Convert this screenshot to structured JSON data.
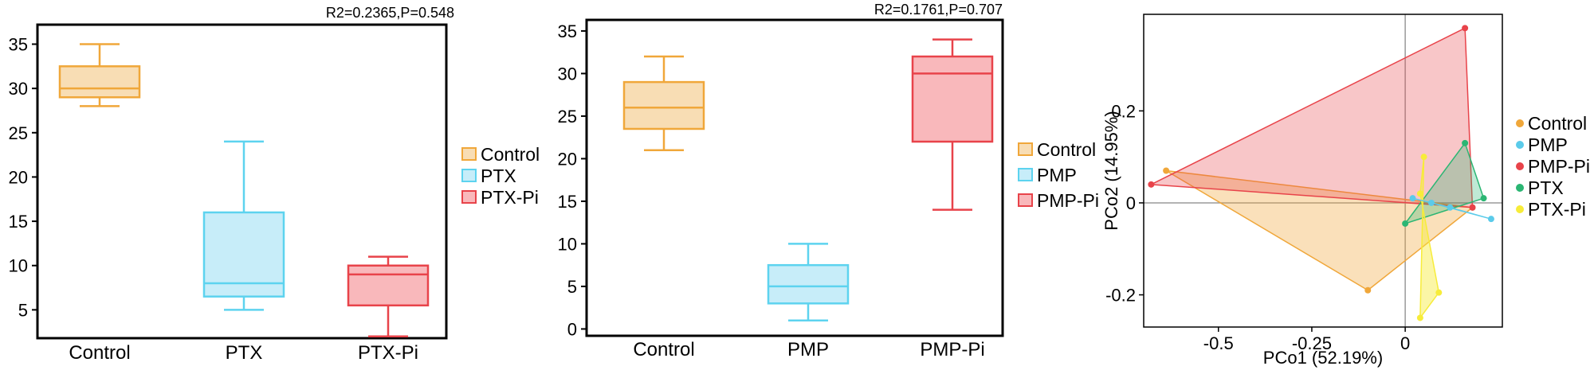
{
  "colors": {
    "Control": {
      "stroke": "#f0a73a",
      "fill": "#f8ddb4"
    },
    "PTX": {
      "stroke": "#5dd3ef",
      "fill": "#c7edf9"
    },
    "PMP": {
      "stroke": "#5dd3ef",
      "fill": "#c7edf9"
    },
    "PTX-Pi": {
      "stroke": "#e8434a",
      "fill": "#f9b8bb"
    },
    "PMP-Pi": {
      "stroke": "#e8434a",
      "fill": "#f9b8bb"
    },
    "PCoA_Control": "#f0a73a",
    "PCoA_PMP": "#5bcbea",
    "PCoA_PMP-Pi": "#e8434a",
    "PCoA_PTX": "#2bb673",
    "PCoA_PTX-Pi": "#f7ec39"
  },
  "chart_data": [
    {
      "type": "box",
      "annotation": "R2=0.2365,P=0.548",
      "categories": [
        "Control",
        "PTX",
        "PTX-Pi"
      ],
      "yticks": [
        5,
        10,
        15,
        20,
        25,
        30,
        35
      ],
      "ylim": [
        1.8,
        37.2
      ],
      "boxes": [
        {
          "name": "Control",
          "min": 28,
          "q1": 29,
          "median": 30,
          "q3": 32.5,
          "max": 35
        },
        {
          "name": "PTX",
          "min": 5,
          "q1": 6.5,
          "median": 8,
          "q3": 16,
          "max": 24
        },
        {
          "name": "PTX-Pi",
          "min": 2,
          "q1": 5.5,
          "median": 9,
          "q3": 10,
          "max": 11
        }
      ],
      "legend": [
        "Control",
        "PTX",
        "PTX-Pi"
      ],
      "legend_position": "right"
    },
    {
      "type": "box",
      "annotation": "R2=0.1761,P=0.707",
      "categories": [
        "Control",
        "PMP",
        "PMP-Pi"
      ],
      "yticks": [
        0,
        5,
        10,
        15,
        20,
        25,
        30,
        35
      ],
      "ylim": [
        -0.8,
        36.3
      ],
      "boxes": [
        {
          "name": "Control",
          "min": 21,
          "q1": 23.5,
          "median": 26,
          "q3": 29,
          "max": 32
        },
        {
          "name": "PMP",
          "min": 1,
          "q1": 3,
          "median": 5,
          "q3": 7.5,
          "max": 10
        },
        {
          "name": "PMP-Pi",
          "min": 14,
          "q1": 22,
          "median": 30,
          "q3": 32,
          "max": 34
        }
      ],
      "legend": [
        "Control",
        "PMP",
        "PMP-Pi"
      ],
      "legend_position": "right"
    },
    {
      "type": "scatter",
      "subtype": "PCoA with convex hulls",
      "xlabel": "PCo1 (52.19%)",
      "ylabel": "PCo2 (14.95%)",
      "xticks": [
        -0.5,
        -0.25,
        0
      ],
      "yticks": [
        0.2,
        0,
        -0.2
      ],
      "xlim": [
        -0.7,
        0.26
      ],
      "ylim": [
        -0.27,
        0.41
      ],
      "reference_lines": {
        "x": 0,
        "y": 0
      },
      "groups": [
        {
          "name": "Control",
          "points": [
            [
              -0.64,
              0.07
            ],
            [
              -0.1,
              -0.19
            ],
            [
              0.18,
              -0.01
            ]
          ]
        },
        {
          "name": "PMP-Pi",
          "points": [
            [
              -0.68,
              0.04
            ],
            [
              0.16,
              0.38
            ],
            [
              0.18,
              -0.01
            ]
          ]
        },
        {
          "name": "PTX",
          "points": [
            [
              0.0,
              -0.045
            ],
            [
              0.16,
              0.13
            ],
            [
              0.21,
              0.01
            ]
          ]
        },
        {
          "name": "PTX-Pi",
          "points": [
            [
              0.05,
              0.1
            ],
            [
              0.04,
              -0.25
            ],
            [
              0.09,
              -0.195
            ],
            [
              0.04,
              0.02
            ]
          ]
        },
        {
          "name": "PMP",
          "points": [
            [
              0.02,
              0.01
            ],
            [
              0.07,
              0.0
            ],
            [
              0.23,
              -0.035
            ],
            [
              0.12,
              -0.01
            ]
          ]
        }
      ],
      "legend": [
        "Control",
        "PMP",
        "PMP-Pi",
        "PTX",
        "PTX-Pi"
      ],
      "legend_position": "right"
    }
  ]
}
